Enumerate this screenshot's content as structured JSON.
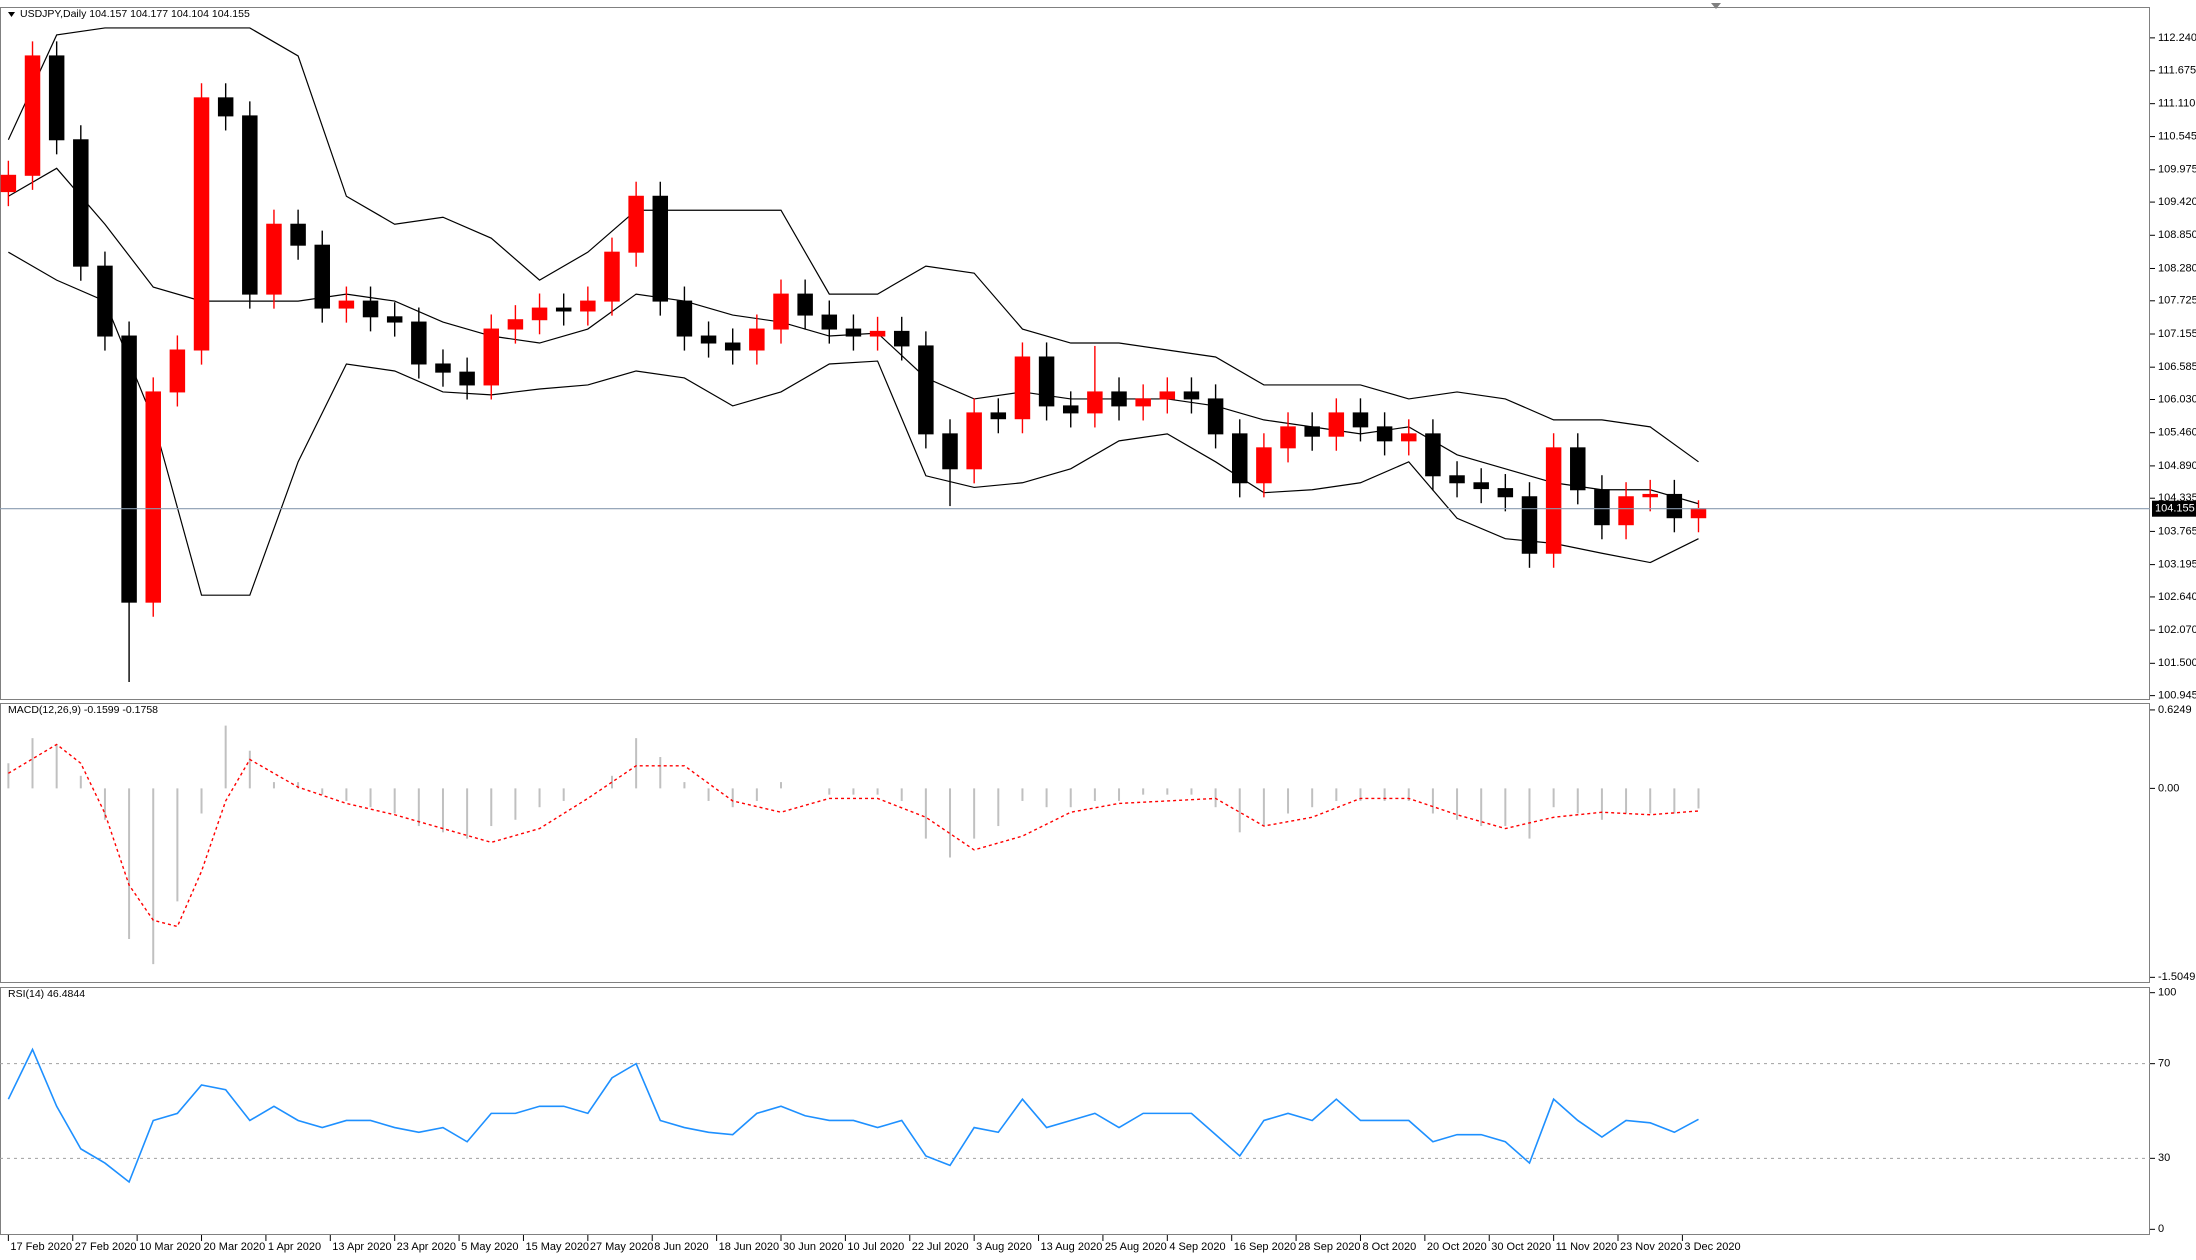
{
  "chart_data": [
    {
      "type": "candlestick",
      "title": "USDJPY,Daily  104.157 104.177 104.104 104.155",
      "up_color": "#ff0000",
      "down_color": "#000000",
      "band_color": "#000000",
      "price_line_color": "#8a9bb0",
      "xlim": [
        -1.04,
        266.1
      ],
      "x": [
        0,
        3,
        6,
        9,
        12,
        15,
        18,
        21,
        24,
        27,
        30,
        33,
        36,
        39,
        42,
        45,
        48,
        51,
        54,
        57,
        60,
        63,
        66,
        69,
        72,
        75,
        78,
        81,
        84,
        87,
        90,
        93,
        96,
        99,
        102,
        105,
        108,
        111,
        114,
        117,
        120,
        123,
        126,
        129,
        132,
        135,
        138,
        141,
        144,
        147,
        150,
        153,
        156,
        159,
        162,
        165,
        168,
        171,
        174,
        177,
        180,
        183,
        186,
        189,
        192,
        195,
        198,
        201,
        204,
        207,
        210
      ],
      "open": [
        109.6,
        109.88,
        111.93,
        110.49,
        108.32,
        107.12,
        102.55,
        106.16,
        106.88,
        111.21,
        110.9,
        107.84,
        109.04,
        108.68,
        107.6,
        107.72,
        107.45,
        107.36,
        106.64,
        106.5,
        106.28,
        107.24,
        107.4,
        107.6,
        107.55,
        107.72,
        108.56,
        109.52,
        107.72,
        107.12,
        107.0,
        106.88,
        107.24,
        107.84,
        107.48,
        107.24,
        107.12,
        107.2,
        106.95,
        105.44,
        104.84,
        105.8,
        105.7,
        106.76,
        105.92,
        105.8,
        106.16,
        105.92,
        106.04,
        106.16,
        106.04,
        105.44,
        104.6,
        105.2,
        105.56,
        105.4,
        105.8,
        105.56,
        105.32,
        105.44,
        104.72,
        104.6,
        104.5,
        104.36,
        103.39,
        105.2,
        104.48,
        103.88,
        104.36,
        104.4,
        104.0
      ],
      "high": [
        110.13,
        112.18,
        112.18,
        110.74,
        108.57,
        107.37,
        106.41,
        107.13,
        111.46,
        111.46,
        111.15,
        109.29,
        109.29,
        108.93,
        107.97,
        107.97,
        107.7,
        107.61,
        106.89,
        106.75,
        107.49,
        107.65,
        107.85,
        107.85,
        107.97,
        108.81,
        109.77,
        109.77,
        107.97,
        107.37,
        107.25,
        107.49,
        108.09,
        108.09,
        107.73,
        107.49,
        107.45,
        107.45,
        107.2,
        105.69,
        106.05,
        106.05,
        107.01,
        107.01,
        106.17,
        106.95,
        106.41,
        106.29,
        106.41,
        106.41,
        106.29,
        105.69,
        105.45,
        105.81,
        105.81,
        106.05,
        106.05,
        105.81,
        105.69,
        105.69,
        104.97,
        104.85,
        104.75,
        104.61,
        105.45,
        105.45,
        104.73,
        104.61,
        104.65,
        104.65,
        104.3
      ],
      "low": [
        109.35,
        109.63,
        110.24,
        108.07,
        106.87,
        101.18,
        102.3,
        105.91,
        106.63,
        110.65,
        107.59,
        107.59,
        108.43,
        107.35,
        107.35,
        107.2,
        107.11,
        106.39,
        106.25,
        106.03,
        106.03,
        106.99,
        107.15,
        107.3,
        107.3,
        107.47,
        108.31,
        107.47,
        106.87,
        106.75,
        106.63,
        106.63,
        106.99,
        107.23,
        106.99,
        106.87,
        106.87,
        106.7,
        105.19,
        104.2,
        104.59,
        105.45,
        105.45,
        105.67,
        105.55,
        105.55,
        105.67,
        105.67,
        105.79,
        105.79,
        105.19,
        104.35,
        104.35,
        104.95,
        105.15,
        105.15,
        105.31,
        105.07,
        105.07,
        104.47,
        104.35,
        104.25,
        104.11,
        103.14,
        103.14,
        104.23,
        103.63,
        103.63,
        104.11,
        103.75,
        103.75
      ],
      "close": [
        109.88,
        111.93,
        110.49,
        108.32,
        107.12,
        102.55,
        106.16,
        106.88,
        111.21,
        110.9,
        107.84,
        109.04,
        108.68,
        107.6,
        107.72,
        107.45,
        107.36,
        106.64,
        106.5,
        106.28,
        107.24,
        107.4,
        107.6,
        107.55,
        107.72,
        108.56,
        109.52,
        107.72,
        107.12,
        107.0,
        106.88,
        107.24,
        107.84,
        107.48,
        107.24,
        107.12,
        107.2,
        106.95,
        105.44,
        104.84,
        105.8,
        105.7,
        106.76,
        105.92,
        105.8,
        106.16,
        105.92,
        106.04,
        106.16,
        106.04,
        105.44,
        104.6,
        105.2,
        105.56,
        105.4,
        105.8,
        105.56,
        105.32,
        105.44,
        104.72,
        104.6,
        104.5,
        104.36,
        103.39,
        105.2,
        104.48,
        103.88,
        104.36,
        104.4,
        104.0,
        104.155
      ],
      "bollinger": {
        "x": [
          0,
          6,
          12,
          18,
          24,
          30,
          36,
          42,
          48,
          54,
          60,
          66,
          72,
          78,
          84,
          90,
          96,
          102,
          108,
          114,
          120,
          126,
          132,
          138,
          144,
          150,
          156,
          162,
          168,
          174,
          180,
          186,
          192,
          198,
          204,
          210
        ],
        "upper": [
          110.49,
          112.29,
          112.41,
          112.41,
          112.41,
          112.41,
          111.93,
          109.52,
          109.04,
          109.16,
          108.8,
          108.08,
          108.56,
          109.28,
          109.28,
          109.28,
          109.28,
          107.84,
          107.84,
          108.32,
          108.2,
          107.24,
          107.0,
          107.0,
          106.88,
          106.76,
          106.28,
          106.28,
          106.28,
          106.04,
          106.16,
          106.04,
          105.68,
          105.68,
          105.56,
          104.96
        ],
        "middle": [
          109.52,
          110.0,
          109.04,
          107.96,
          107.72,
          107.72,
          107.72,
          107.84,
          107.72,
          107.36,
          107.12,
          107.0,
          107.24,
          107.84,
          107.72,
          107.48,
          107.36,
          107.12,
          107.17,
          106.4,
          106.04,
          106.16,
          106.04,
          106.04,
          106.04,
          105.92,
          105.68,
          105.56,
          105.44,
          105.56,
          105.08,
          104.84,
          104.6,
          104.48,
          104.48,
          104.24
        ],
        "lower": [
          108.56,
          108.08,
          107.72,
          105.68,
          102.67,
          102.67,
          104.96,
          106.64,
          106.52,
          106.16,
          106.11,
          106.21,
          106.28,
          106.52,
          106.4,
          105.92,
          106.16,
          106.64,
          106.69,
          104.72,
          104.52,
          104.6,
          104.84,
          105.32,
          105.44,
          104.96,
          104.43,
          104.48,
          104.6,
          104.96,
          103.99,
          103.64,
          103.56,
          103.39,
          103.23,
          103.64
        ]
      },
      "current_price": 104.155,
      "ylim": [
        100.87,
        112.77
      ],
      "yticks": [
        {
          "value": 112.24,
          "label": "112.240"
        },
        {
          "value": 111.675,
          "label": "111.675"
        },
        {
          "value": 111.11,
          "label": "111.110"
        },
        {
          "value": 110.545,
          "label": "110.545"
        },
        {
          "value": 109.975,
          "label": "109.975"
        },
        {
          "value": 109.42,
          "label": "109.420"
        },
        {
          "value": 108.85,
          "label": "108.850"
        },
        {
          "value": 108.28,
          "label": "108.280"
        },
        {
          "value": 107.725,
          "label": "107.725"
        },
        {
          "value": 107.155,
          "label": "107.155"
        },
        {
          "value": 106.585,
          "label": "106.585"
        },
        {
          "value": 106.03,
          "label": "106.030"
        },
        {
          "value": 105.46,
          "label": "105.460"
        },
        {
          "value": 104.89,
          "label": "104.890"
        },
        {
          "value": 104.335,
          "label": "104.335"
        },
        {
          "value": 103.765,
          "label": "103.765"
        },
        {
          "value": 103.195,
          "label": "103.195"
        },
        {
          "value": 102.64,
          "label": "102.640"
        },
        {
          "value": 102.07,
          "label": "102.070"
        },
        {
          "value": 101.5,
          "label": "101.500"
        },
        {
          "value": 100.945,
          "label": "100.945"
        }
      ]
    },
    {
      "type": "macd",
      "title": "MACD(12,26,9) -0.1599 -0.1758",
      "color": "#c0c0c0",
      "signal_color": "#ff0000",
      "xlim": [
        -1.04,
        266.1
      ],
      "x": [
        0,
        3,
        6,
        9,
        12,
        15,
        18,
        21,
        24,
        27,
        30,
        33,
        36,
        39,
        42,
        45,
        48,
        51,
        54,
        57,
        60,
        63,
        66,
        69,
        72,
        75,
        78,
        81,
        84,
        87,
        90,
        93,
        96,
        99,
        102,
        105,
        108,
        111,
        114,
        117,
        120,
        123,
        126,
        129,
        132,
        135,
        138,
        141,
        144,
        147,
        150,
        153,
        156,
        159,
        162,
        165,
        168,
        171,
        174,
        177,
        180,
        183,
        186,
        189,
        192,
        195,
        198,
        201,
        204,
        207,
        210
      ],
      "values": [
        0.2,
        0.4,
        0.35,
        0.1,
        -0.25,
        -1.2,
        -1.4,
        -0.9,
        -0.2,
        0.5,
        0.3,
        0.05,
        0.05,
        -0.05,
        -0.1,
        -0.15,
        -0.2,
        -0.3,
        -0.35,
        -0.4,
        -0.3,
        -0.25,
        -0.15,
        -0.1,
        0,
        0.1,
        0.4,
        0.25,
        0.05,
        -0.1,
        -0.15,
        -0.1,
        0.05,
        0,
        -0.05,
        -0.05,
        -0.05,
        -0.1,
        -0.4,
        -0.55,
        -0.4,
        -0.3,
        -0.1,
        -0.15,
        -0.15,
        -0.1,
        -0.1,
        -0.05,
        -0.05,
        -0.05,
        -0.15,
        -0.35,
        -0.3,
        -0.2,
        -0.15,
        -0.1,
        -0.1,
        -0.1,
        -0.1,
        -0.2,
        -0.25,
        -0.3,
        -0.3,
        -0.4,
        -0.15,
        -0.2,
        -0.25,
        -0.2,
        -0.2,
        -0.2,
        -0.16
      ],
      "signal_x": [
        0,
        6,
        9,
        12,
        15,
        18,
        21,
        24,
        27,
        30,
        36,
        42,
        48,
        54,
        60,
        66,
        72,
        78,
        84,
        90,
        96,
        102,
        108,
        114,
        120,
        126,
        132,
        138,
        144,
        150,
        156,
        162,
        168,
        174,
        180,
        186,
        192,
        198,
        204,
        210
      ],
      "signal": [
        0.12,
        0.35,
        0.2,
        -0.2,
        -0.77,
        -1.05,
        -1.1,
        -0.66,
        -0.1,
        0.23,
        0.01,
        -0.12,
        -0.21,
        -0.32,
        -0.43,
        -0.32,
        -0.08,
        0.18,
        0.18,
        -0.1,
        -0.19,
        -0.08,
        -0.08,
        -0.23,
        -0.49,
        -0.38,
        -0.19,
        -0.12,
        -0.1,
        -0.08,
        -0.3,
        -0.23,
        -0.08,
        -0.08,
        -0.21,
        -0.32,
        -0.23,
        -0.19,
        -0.21,
        -0.18
      ],
      "ylim": [
        -1.55,
        0.68
      ],
      "yticks": [
        0.6249,
        {
          "value": 0,
          "label": "0.00"
        },
        -1.5049
      ]
    },
    {
      "type": "line",
      "title": "RSI(14) 46.4844",
      "color": "#1e90ff",
      "level_color": "#a0a0a0",
      "xlim": [
        -1.04,
        266.1
      ],
      "x": [
        0,
        3,
        6,
        9,
        12,
        15,
        18,
        21,
        24,
        27,
        30,
        33,
        36,
        39,
        42,
        45,
        48,
        51,
        54,
        57,
        60,
        63,
        66,
        69,
        72,
        75,
        78,
        81,
        84,
        87,
        90,
        93,
        96,
        99,
        102,
        105,
        108,
        111,
        114,
        117,
        120,
        123,
        126,
        129,
        132,
        135,
        138,
        141,
        144,
        147,
        150,
        153,
        156,
        159,
        162,
        165,
        168,
        171,
        174,
        177,
        180,
        183,
        186,
        189,
        192,
        195,
        198,
        201,
        204,
        207,
        210
      ],
      "values": [
        55,
        76,
        52,
        34,
        28,
        20,
        46,
        49,
        61,
        59,
        46,
        52,
        46,
        43,
        46,
        46,
        43,
        41,
        43,
        37,
        49,
        49,
        52,
        52,
        49,
        64,
        70,
        46,
        43,
        41,
        40,
        49,
        52,
        48,
        46,
        46,
        43,
        46,
        31,
        27,
        43,
        41,
        55,
        43,
        46,
        49,
        43,
        49,
        49,
        49,
        40,
        31,
        46,
        49,
        46,
        55,
        46,
        46,
        46,
        37,
        40,
        40,
        37,
        28,
        55,
        46,
        39,
        46,
        45,
        41,
        46.4844
      ],
      "levels": [
        70,
        30
      ],
      "ylim": [
        -2.4,
        102.4
      ],
      "yticks": [
        100,
        70,
        30,
        0
      ],
      "xticks": [
        {
          "value": 0,
          "label": "17 Feb 2020"
        },
        {
          "value": 8,
          "label": "27 Feb 2020"
        },
        {
          "value": 16,
          "label": "10 Mar 2020"
        },
        {
          "value": 24,
          "label": "20 Mar 2020"
        },
        {
          "value": 32,
          "label": "1 Apr 2020"
        },
        {
          "value": 40,
          "label": "13 Apr 2020"
        },
        {
          "value": 48,
          "label": "23 Apr 2020"
        },
        {
          "value": 56,
          "label": "5 May 2020"
        },
        {
          "value": 64,
          "label": "15 May 2020"
        },
        {
          "value": 72,
          "label": "27 May 2020"
        },
        {
          "value": 80,
          "label": "8 Jun 2020"
        },
        {
          "value": 88,
          "label": "18 Jun 2020"
        },
        {
          "value": 96,
          "label": "30 Jun 2020"
        },
        {
          "value": 104,
          "label": "10 Jul 2020"
        },
        {
          "value": 112,
          "label": "22 Jul 2020"
        },
        {
          "value": 120,
          "label": "3 Aug 2020"
        },
        {
          "value": 128,
          "label": "13 Aug 2020"
        },
        {
          "value": 136,
          "label": "25 Aug 2020"
        },
        {
          "value": 144,
          "label": "4 Sep 2020"
        },
        {
          "value": 152,
          "label": "16 Sep 2020"
        },
        {
          "value": 160,
          "label": "28 Sep 2020"
        },
        {
          "value": 168,
          "label": "8 Oct 2020"
        },
        {
          "value": 176,
          "label": "20 Oct 2020"
        },
        {
          "value": 184,
          "label": "30 Oct 2020"
        },
        {
          "value": 192,
          "label": "11 Nov 2020"
        },
        {
          "value": 200,
          "label": "23 Nov 2020"
        },
        {
          "value": 208,
          "label": "3 Dec 2020"
        }
      ]
    }
  ]
}
